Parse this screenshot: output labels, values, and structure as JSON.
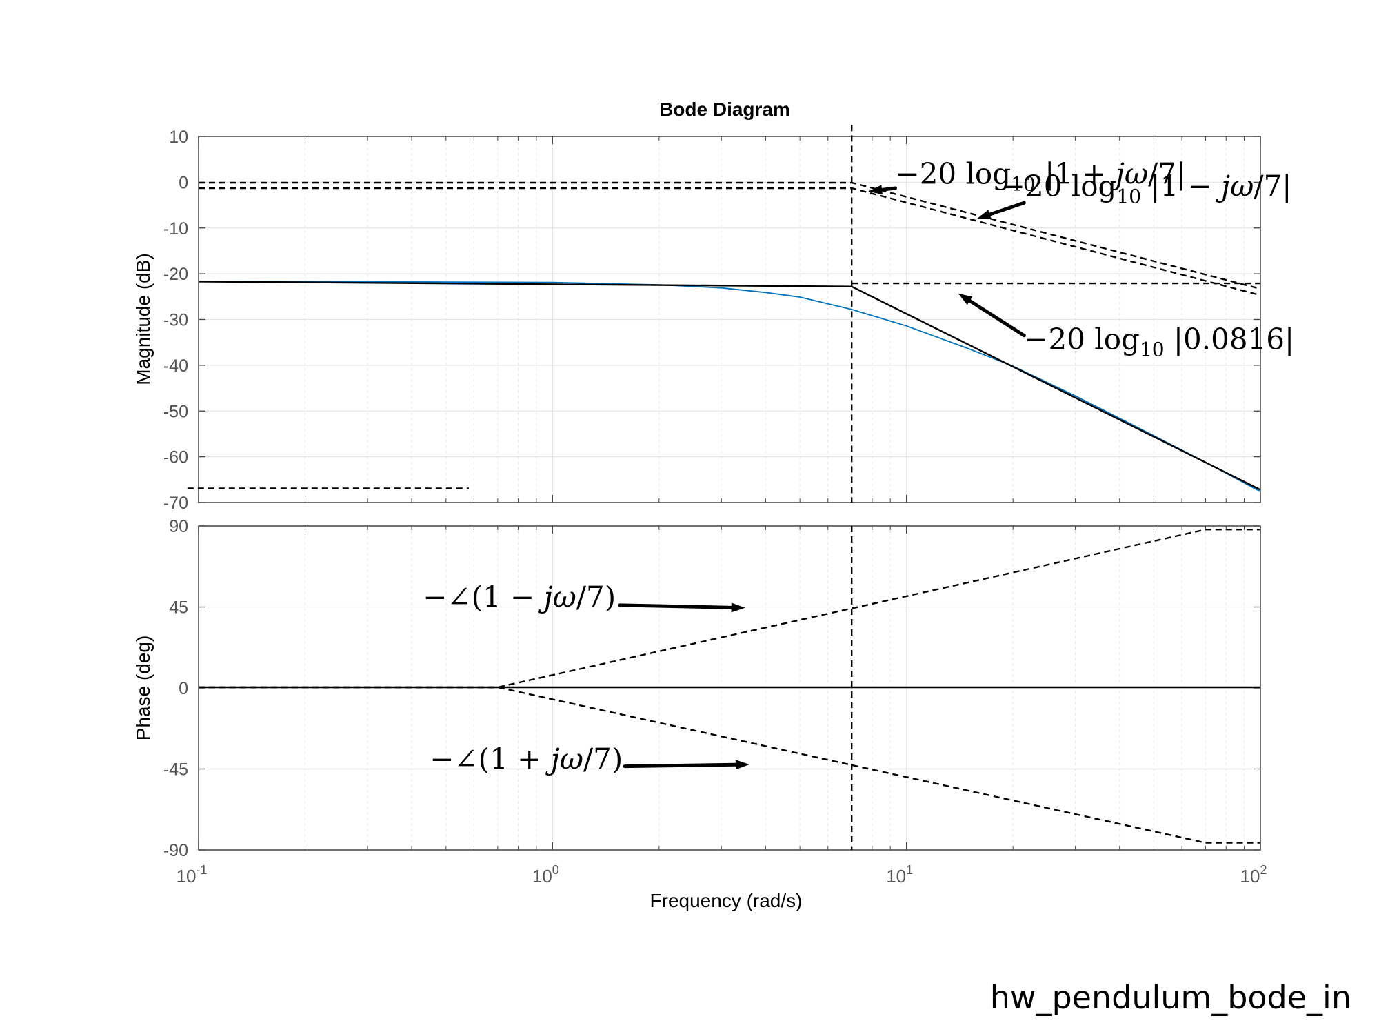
{
  "chart_data": {
    "type": "line",
    "title": "Bode Diagram",
    "xlabel": "Frequency  (rad/s)",
    "x_scale": "log",
    "xlim": [
      0.1,
      100
    ],
    "x_ticks": [
      {
        "value": 0.1,
        "base": "10",
        "exp": "-1"
      },
      {
        "value": 1,
        "base": "10",
        "exp": "0"
      },
      {
        "value": 10,
        "base": "10",
        "exp": "1"
      },
      {
        "value": 100,
        "base": "10",
        "exp": "2"
      }
    ],
    "grid": true,
    "magnitude": {
      "ylabel": "Magnitude (dB)",
      "ylim": [
        -70,
        10
      ],
      "y_ticks": [
        10,
        0,
        -10,
        -20,
        -30,
        -40,
        -50,
        -60,
        -70
      ],
      "y_tick_labels": [
        "10",
        "0",
        "-10",
        "-20",
        "-30",
        "-40",
        "-50",
        "-60",
        "-70"
      ],
      "series": [
        {
          "style": "solid",
          "color": "#0072BD",
          "x": [
            0.1,
            0.5,
            1,
            2,
            3,
            4,
            5,
            7,
            10,
            15,
            20,
            30,
            50,
            70,
            100
          ],
          "y": [
            -21.7,
            -21.8,
            -21.9,
            -22.4,
            -23.1,
            -24.1,
            -25.1,
            -27.8,
            -31.4,
            -36.4,
            -40.2,
            -46.7,
            -55.4,
            -61.2,
            -67.6
          ]
        },
        {
          "style": "solid",
          "color": "#000000",
          "x": [
            0.1,
            7,
            100
          ],
          "y": [
            -21.7,
            -22.8,
            -67.2
          ]
        },
        {
          "style": "dashed",
          "color": "#000000",
          "x": [
            0.1,
            7,
            100
          ],
          "y": [
            -0.1,
            -0.1,
            -23.3
          ]
        },
        {
          "style": "dashed",
          "color": "#000000",
          "x": [
            0.1,
            7,
            100
          ],
          "y": [
            -1.3,
            -1.3,
            -24.7
          ]
        },
        {
          "style": "dashed",
          "color": "#000000",
          "x": [
            7,
            100
          ],
          "y": [
            -22.1,
            -22.1
          ]
        },
        {
          "style": "dashed",
          "color": "#000000",
          "x": [
            0.093,
            0.58
          ],
          "y": [
            -66.9,
            -66.9
          ]
        },
        {
          "style": "dashed",
          "color": "#000000",
          "x": [
            7,
            7
          ],
          "y": [
            12.5,
            -70
          ]
        }
      ],
      "annotations": [
        {
          "text_id": "m1",
          "label_pos": [
            9.3,
            -0.3
          ],
          "arrow_from": [
            9.3,
            -1.3
          ],
          "arrow_to": [
            7.8,
            -2.0
          ]
        },
        {
          "text_id": "m2",
          "label_pos": [
            18.5,
            -3.0
          ],
          "arrow_from": [
            21.5,
            -4.5
          ],
          "arrow_to": [
            15.8,
            -8.0
          ]
        },
        {
          "text_id": "m3",
          "label_pos": [
            21.5,
            -36.5
          ],
          "arrow_from": [
            21.5,
            -33.5
          ],
          "arrow_to": [
            14.0,
            -24.3
          ]
        }
      ]
    },
    "phase": {
      "ylabel": "Phase (deg)",
      "ylim": [
        -90,
        90
      ],
      "y_ticks": [
        90,
        45,
        0,
        -45,
        -90
      ],
      "y_tick_labels": [
        "90",
        "45",
        "0",
        "-45",
        "-90"
      ],
      "series": [
        {
          "style": "solid",
          "color": "#0072BD",
          "x": [
            0.1,
            100
          ],
          "y": [
            0.4,
            0.4
          ]
        },
        {
          "style": "solid",
          "color": "#000000",
          "x": [
            0.1,
            100
          ],
          "y": [
            0.4,
            0.4
          ]
        },
        {
          "style": "dashed",
          "color": "#000000",
          "x": [
            0.1,
            0.7,
            70,
            100
          ],
          "y": [
            0.4,
            0.4,
            88,
            88
          ]
        },
        {
          "style": "dashed",
          "color": "#000000",
          "x": [
            0.1,
            0.7,
            70,
            100
          ],
          "y": [
            0.4,
            0.4,
            -86,
            -86
          ]
        },
        {
          "style": "dashed",
          "color": "#000000",
          "x": [
            7,
            7
          ],
          "y": [
            90,
            -90
          ]
        }
      ],
      "annotations": [
        {
          "text_id": "p1",
          "label_pos": [
            0.43,
            45
          ],
          "arrow_from": [
            1.55,
            46
          ],
          "arrow_to": [
            3.5,
            44.5
          ]
        },
        {
          "text_id": "p2",
          "label_pos": [
            0.45,
            -45
          ],
          "arrow_from": [
            1.6,
            -43.5
          ],
          "arrow_to": [
            3.6,
            -42.5
          ]
        }
      ]
    }
  },
  "annotation_text": {
    "m1": {
      "prefix": "−20 log",
      "sub": "10",
      "body_a": " |1 + ",
      "body_var": "jω",
      "body_b": "/7|"
    },
    "m2": {
      "prefix": "−20 log",
      "sub": "10",
      "body_a": " |1 − ",
      "body_var": "jω",
      "body_b": "/7|"
    },
    "m3": {
      "prefix": "−20 log",
      "sub": "10",
      "body_a": " |0.0816|",
      "body_var": "",
      "body_b": ""
    },
    "p1": {
      "prefix": "−∠(1 − ",
      "body_var": "jω",
      "body_b": "/7)"
    },
    "p2": {
      "prefix": "−∠(1 + ",
      "body_var": "jω",
      "body_b": "/7)"
    }
  },
  "footer_caption": "hw_pendulum_bode_in"
}
